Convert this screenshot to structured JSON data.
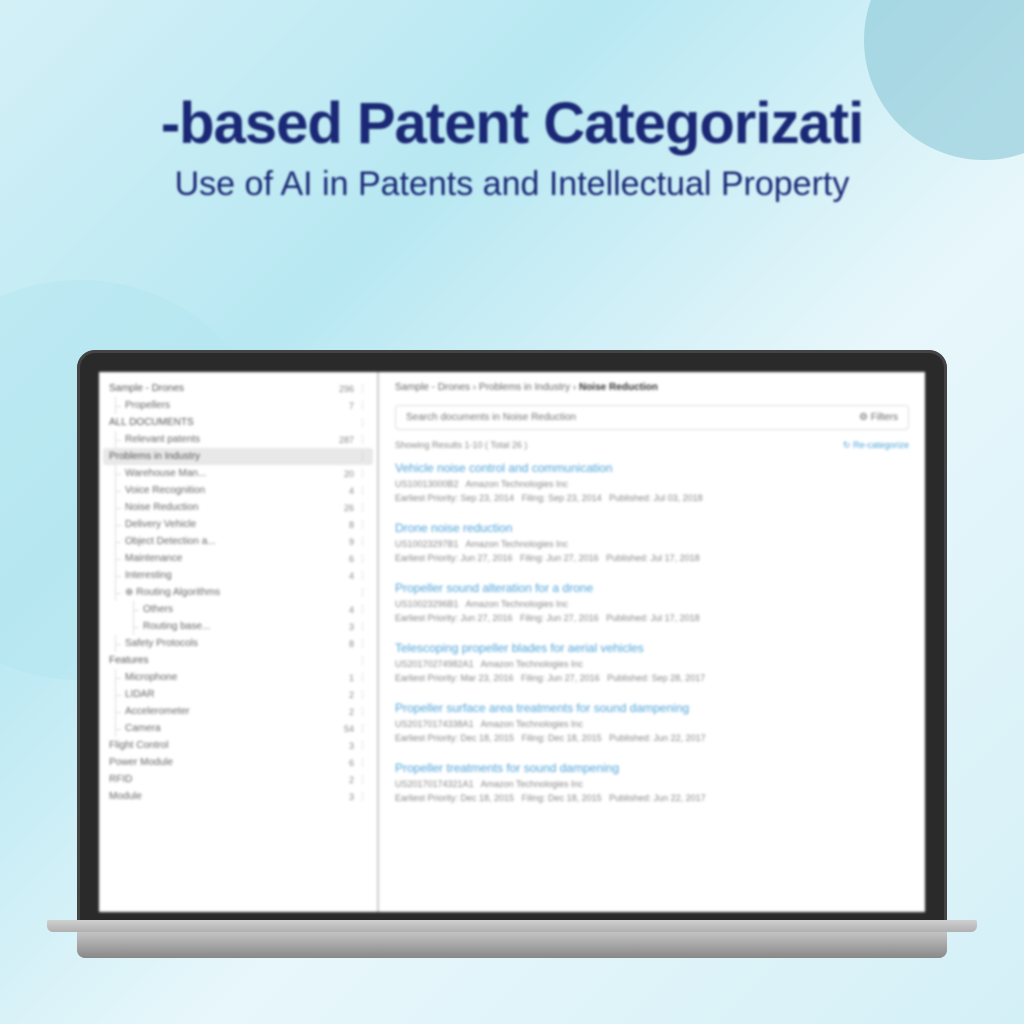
{
  "headline": {
    "title": "-based Patent Categorizati",
    "subtitle": "Use of AI in Patents and Intellectual Property"
  },
  "sidebar": {
    "top": {
      "label": "Sample - Drones",
      "count": "296"
    },
    "topsub": {
      "label": "Propellers",
      "count": "7"
    },
    "allDocs": "ALL DOCUMENTS",
    "relevant": {
      "label": "Relevant patents",
      "count": "287"
    },
    "problems": "Problems in Industry",
    "items1": [
      {
        "label": "Warehouse Man...",
        "count": "20"
      },
      {
        "label": "Voice Recognition",
        "count": "4"
      },
      {
        "label": "Noise Reduction",
        "count": "26"
      },
      {
        "label": "Delivery Vehicle",
        "count": "8"
      },
      {
        "label": "Object Detection a...",
        "count": "9"
      },
      {
        "label": "Maintenance",
        "count": "6"
      },
      {
        "label": "Interesting",
        "count": "4"
      }
    ],
    "routing": {
      "label": "Routing Algorithms"
    },
    "routingItems": [
      {
        "label": "Others",
        "count": "4"
      },
      {
        "label": "Routing base...",
        "count": "3"
      }
    ],
    "safety": {
      "label": "Safety Protocols",
      "count": "8"
    },
    "features": "Features",
    "items2": [
      {
        "label": "Microphone",
        "count": "1"
      },
      {
        "label": "LIDAR",
        "count": "2"
      },
      {
        "label": "Accelerometer",
        "count": "2"
      },
      {
        "label": "Camera",
        "count": "54"
      }
    ],
    "flight": {
      "label": "Flight Control",
      "count": "3"
    },
    "power": {
      "label": "Power Module",
      "count": "6"
    },
    "rfid": {
      "label": "RFID",
      "count": "2"
    },
    "module": {
      "label": "Module",
      "count": "3"
    }
  },
  "main": {
    "breadcrumb": {
      "a": "Sample - Drones",
      "b": "Problems in Industry",
      "c": "Noise Reduction"
    },
    "searchPlaceholder": "Search documents in Noise Reduction",
    "filtersLabel": "Filters",
    "showing": "Showing Results 1-10 ( Total 26 )",
    "recat": "Re-categorize",
    "results": [
      {
        "title": "Vehicle noise control and communication",
        "id": "US10013000B2",
        "assignee": "Amazon Technologies Inc",
        "priority": "Sep 23, 2014",
        "filing": "Sep 23, 2014",
        "published": "Jul 03, 2018"
      },
      {
        "title": "Drone noise reduction",
        "id": "US10023297B1",
        "assignee": "Amazon Technologies Inc",
        "priority": "Jun 27, 2016",
        "filing": "Jun 27, 2016",
        "published": "Jul 17, 2018"
      },
      {
        "title": "Propeller sound alteration for a drone",
        "id": "US10023296B1",
        "assignee": "Amazon Technologies Inc",
        "priority": "Jun 27, 2016",
        "filing": "Jun 27, 2016",
        "published": "Jul 17, 2018"
      },
      {
        "title": "Telescoping propeller blades for aerial vehicles",
        "id": "US20170274982A1",
        "assignee": "Amazon Technologies Inc",
        "priority": "Mar 23, 2016",
        "filing": "Jun 27, 2016",
        "published": "Sep 28, 2017"
      },
      {
        "title": "Propeller surface area treatments for sound dampening",
        "id": "US20170174338A1",
        "assignee": "Amazon Technologies Inc",
        "priority": "Dec 18, 2015",
        "filing": "Dec 18, 2015",
        "published": "Jun 22, 2017"
      },
      {
        "title": "Propeller treatments for sound dampening",
        "id": "US20170174321A1",
        "assignee": "Amazon Technologies Inc",
        "priority": "Dec 18, 2015",
        "filing": "Dec 18, 2015",
        "published": "Jun 22, 2017"
      }
    ]
  },
  "labels": {
    "priority": "Earliest Priority:",
    "filing": "Filing:",
    "published": "Published:"
  }
}
